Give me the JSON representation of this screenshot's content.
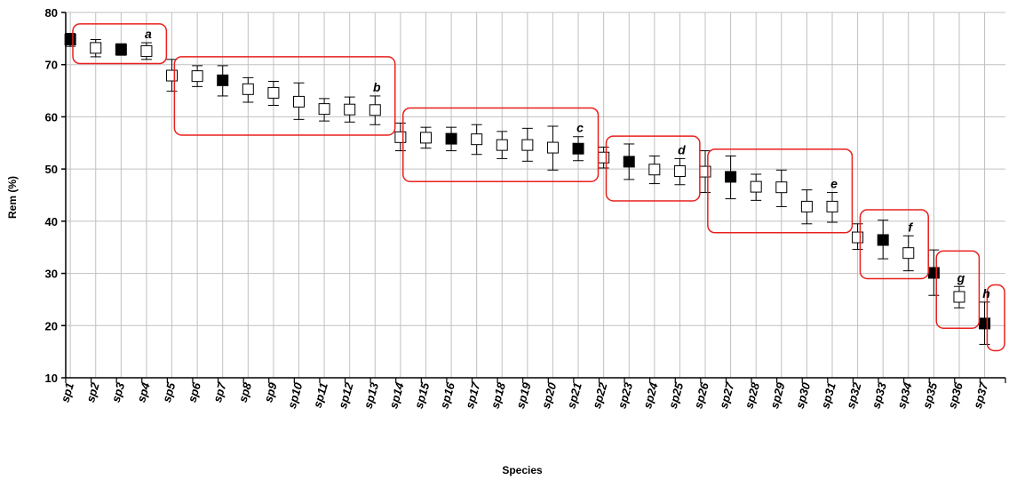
{
  "chart_data": {
    "type": "scatter",
    "title": "",
    "xlabel": "Species",
    "ylabel": "Rem (%)",
    "ylim": [
      10,
      80
    ],
    "y_ticks": [
      "10",
      "20",
      "30",
      "40",
      "50",
      "60",
      "70",
      "80"
    ],
    "grid": true,
    "categories": [
      "sp1",
      "sp2",
      "sp3",
      "sp4",
      "sp5",
      "sp6",
      "sp7",
      "sp8",
      "sp9",
      "sp10",
      "sp11",
      "sp12",
      "sp13",
      "sp14",
      "sp15",
      "sp16",
      "sp17",
      "sp18",
      "sp19",
      "sp20",
      "sp21",
      "sp22",
      "sp23",
      "sp24",
      "sp25",
      "sp26",
      "sp27",
      "sp28",
      "sp29",
      "sp30",
      "sp31",
      "sp32",
      "sp33",
      "sp34",
      "sp35",
      "sp36",
      "sp37"
    ],
    "values": [
      74.8,
      73.2,
      72.9,
      72.6,
      67.9,
      67.8,
      67.0,
      65.3,
      64.6,
      62.9,
      61.5,
      61.4,
      61.3,
      56.1,
      56.0,
      55.8,
      55.7,
      54.6,
      54.6,
      54.1,
      53.9,
      52.2,
      51.4,
      49.9,
      49.6,
      49.5,
      48.5,
      46.6,
      46.5,
      42.8,
      42.8,
      36.9,
      36.4,
      33.9,
      30.1,
      25.5,
      20.4
    ],
    "err_upper": [
      76.0,
      74.8,
      74.0,
      74.2,
      71.0,
      69.8,
      69.8,
      67.5,
      66.8,
      66.5,
      63.5,
      63.8,
      64.0,
      58.8,
      58.0,
      58.0,
      58.5,
      57.2,
      57.8,
      58.2,
      56.2,
      54.2,
      54.8,
      52.5,
      52.0,
      53.5,
      52.5,
      49.0,
      49.8,
      46.0,
      45.5,
      39.5,
      40.2,
      37.2,
      34.5,
      27.5,
      24.5
    ],
    "err_lower": [
      73.5,
      71.5,
      71.8,
      71.0,
      64.9,
      65.8,
      64.0,
      62.8,
      62.2,
      59.5,
      59.2,
      59.0,
      58.5,
      53.5,
      54.0,
      53.5,
      52.8,
      52.0,
      51.5,
      49.8,
      51.6,
      50.2,
      48.0,
      47.2,
      47.0,
      45.5,
      44.3,
      44.0,
      42.8,
      39.5,
      39.8,
      34.6,
      32.8,
      30.5,
      25.8,
      23.4,
      16.4
    ],
    "filled": [
      true,
      false,
      true,
      false,
      false,
      false,
      true,
      false,
      false,
      false,
      false,
      false,
      false,
      false,
      false,
      true,
      false,
      false,
      false,
      false,
      true,
      false,
      true,
      false,
      false,
      false,
      true,
      false,
      false,
      false,
      false,
      false,
      true,
      false,
      true,
      false,
      true
    ],
    "groups": [
      {
        "label": "a",
        "from": 0,
        "to": 3,
        "ymin": 70.2,
        "ymax": 77.8
      },
      {
        "label": "b",
        "from": 4,
        "to": 12,
        "ymin": 56.5,
        "ymax": 71.5
      },
      {
        "label": "c",
        "from": 13,
        "to": 20,
        "ymin": 47.6,
        "ymax": 61.7
      },
      {
        "label": "d",
        "from": 21,
        "to": 24,
        "ymin": 43.9,
        "ymax": 56.3
      },
      {
        "label": "e",
        "from": 25,
        "to": 30,
        "ymin": 37.8,
        "ymax": 53.8
      },
      {
        "label": "f",
        "from": 31,
        "to": 33,
        "ymin": 29.0,
        "ymax": 42.2
      },
      {
        "label": "g",
        "from": 34,
        "to": 35,
        "ymin": 19.5,
        "ymax": 34.3
      },
      {
        "label": "h",
        "from": 36,
        "to": 36,
        "ymin": 15.2,
        "ymax": 27.8
      }
    ],
    "colors": {
      "group_box": "#e8201c",
      "grid": "#c0c0c0",
      "marker": "#000000",
      "marker_open_fill": "#ffffff"
    }
  }
}
